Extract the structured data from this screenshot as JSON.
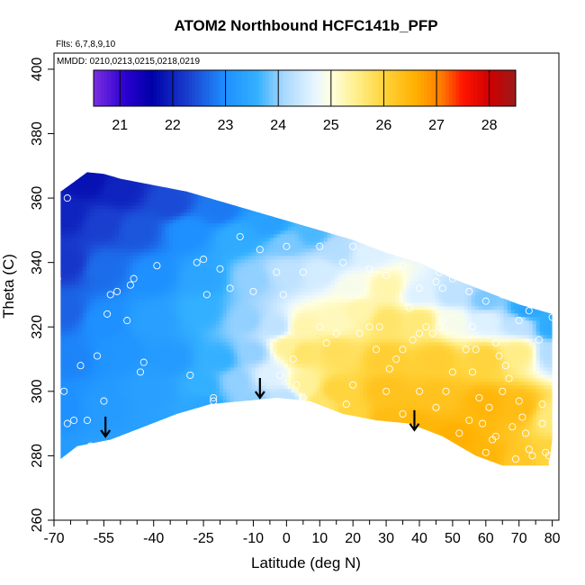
{
  "chart_data": {
    "type": "heatmap",
    "title": "ATOM2 Northbound HCFC141b_PFP",
    "flights_text": "Flts: 6,7,8,9,10",
    "dates_text": "MMDD: 0210,0213,0215,0218,0219",
    "xlabel": "Latitude (deg N)",
    "ylabel": "Theta (C)",
    "xlim": [
      -70,
      82
    ],
    "ylim": [
      260,
      405
    ],
    "x_ticks": [
      -70,
      -55,
      -40,
      -25,
      -10,
      0,
      10,
      20,
      30,
      40,
      50,
      60,
      70,
      80
    ],
    "x_tick_labels": [
      "-70",
      "-55",
      "-40",
      "-25",
      "-10",
      "0",
      "10",
      "20",
      "30",
      "40",
      "50",
      "60",
      "70",
      "80"
    ],
    "x_minor_ticks": [
      -65,
      -60,
      -50,
      -45,
      -35,
      -30,
      -20,
      -15,
      -5,
      5,
      15,
      25,
      35,
      45,
      55,
      65,
      75
    ],
    "y_ticks": [
      260,
      280,
      300,
      320,
      340,
      360,
      380,
      400
    ],
    "y_tick_labels": [
      "260",
      "280",
      "300",
      "320",
      "340",
      "360",
      "380",
      "400"
    ],
    "colorbar": {
      "min": 20.5,
      "max": 28.5,
      "ticks": [
        21,
        22,
        23,
        24,
        25,
        26,
        27,
        28
      ],
      "tick_labels": [
        "21",
        "22",
        "23",
        "24",
        "25",
        "26",
        "27",
        "28"
      ],
      "stops": [
        [
          20.5,
          "#7b2fe0"
        ],
        [
          21.1,
          "#2a00d0"
        ],
        [
          21.6,
          "#0000a8"
        ],
        [
          22.3,
          "#1a3fcf"
        ],
        [
          23.0,
          "#1e90ff"
        ],
        [
          23.6,
          "#33b0ff"
        ],
        [
          24.1,
          "#a9d8ff"
        ],
        [
          24.7,
          "#e8f6ff"
        ],
        [
          25.0,
          "#ffffe0"
        ],
        [
          25.5,
          "#ffee88"
        ],
        [
          26.0,
          "#ffd43c"
        ],
        [
          26.6,
          "#ffb000"
        ],
        [
          27.1,
          "#ff7a00"
        ],
        [
          27.5,
          "#ff1500"
        ],
        [
          28.0,
          "#d00000"
        ],
        [
          28.5,
          "#9b1a1a"
        ]
      ]
    },
    "boundary": [
      [
        -68,
        279
      ],
      [
        -63,
        283
      ],
      [
        -53,
        285
      ],
      [
        -43,
        289
      ],
      [
        -33,
        293
      ],
      [
        -23,
        296
      ],
      [
        -13,
        297
      ],
      [
        -3,
        298
      ],
      [
        7,
        297
      ],
      [
        17,
        293
      ],
      [
        27,
        291
      ],
      [
        37,
        290
      ],
      [
        47,
        286
      ],
      [
        57,
        280
      ],
      [
        65,
        277
      ],
      [
        79,
        277
      ],
      [
        80,
        285
      ],
      [
        80,
        300
      ],
      [
        80,
        316
      ],
      [
        80,
        324
      ],
      [
        70,
        327
      ],
      [
        60,
        331
      ],
      [
        50,
        335
      ],
      [
        40,
        340
      ],
      [
        30,
        343
      ],
      [
        20,
        347
      ],
      [
        10,
        350
      ],
      [
        0,
        353
      ],
      [
        -10,
        356
      ],
      [
        -20,
        359
      ],
      [
        -30,
        362
      ],
      [
        -40,
        364
      ],
      [
        -50,
        366
      ],
      [
        -55,
        367.5
      ],
      [
        -60,
        368
      ],
      [
        -64,
        365
      ],
      [
        -68,
        362
      ]
    ],
    "field_points": [
      [
        -68,
        278,
        23.2
      ],
      [
        -55,
        280,
        23.3
      ],
      [
        -40,
        286,
        23.3
      ],
      [
        -25,
        295,
        23.4
      ],
      [
        -10,
        297,
        24.0
      ],
      [
        0,
        298,
        24.3
      ],
      [
        10,
        296,
        25.7
      ],
      [
        20,
        292,
        26.0
      ],
      [
        30,
        291,
        26.4
      ],
      [
        40,
        289,
        26.5
      ],
      [
        50,
        285,
        26.6
      ],
      [
        60,
        279,
        26.5
      ],
      [
        70,
        277,
        26.2
      ],
      [
        80,
        279,
        26.0
      ],
      [
        -68,
        295,
        23.0
      ],
      [
        -55,
        295,
        23.2
      ],
      [
        -40,
        300,
        23.3
      ],
      [
        -25,
        302,
        23.6
      ],
      [
        -15,
        303,
        24.0
      ],
      [
        -5,
        305,
        24.6
      ],
      [
        5,
        302,
        25.4
      ],
      [
        15,
        300,
        26.0
      ],
      [
        30,
        300,
        26.3
      ],
      [
        45,
        298,
        26.3
      ],
      [
        60,
        296,
        26.5
      ],
      [
        70,
        295,
        26.4
      ],
      [
        80,
        292,
        25.6
      ],
      [
        -65,
        310,
        22.9
      ],
      [
        -50,
        312,
        23.1
      ],
      [
        -35,
        310,
        23.2
      ],
      [
        -20,
        310,
        23.6
      ],
      [
        -10,
        312,
        24.0
      ],
      [
        0,
        314,
        25.4
      ],
      [
        5,
        312,
        25.7
      ],
      [
        15,
        312,
        25.8
      ],
      [
        30,
        310,
        26.1
      ],
      [
        45,
        310,
        26.1
      ],
      [
        60,
        310,
        26.0
      ],
      [
        70,
        312,
        25.5
      ],
      [
        80,
        312,
        24.2
      ],
      [
        -67,
        325,
        22.6
      ],
      [
        -55,
        322,
        23.0
      ],
      [
        -40,
        322,
        23.3
      ],
      [
        -25,
        325,
        23.6
      ],
      [
        -12,
        322,
        24.0
      ],
      [
        -3,
        320,
        24.3
      ],
      [
        5,
        320,
        25.3
      ],
      [
        15,
        322,
        25.2
      ],
      [
        22,
        325,
        25.3
      ],
      [
        30,
        322,
        25.7
      ],
      [
        40,
        322,
        25.6
      ],
      [
        50,
        322,
        24.9
      ],
      [
        60,
        322,
        24.6
      ],
      [
        70,
        321,
        24.3
      ],
      [
        80,
        320,
        23.5
      ],
      [
        -66,
        340,
        22.2
      ],
      [
        -55,
        338,
        22.7
      ],
      [
        -40,
        336,
        23.0
      ],
      [
        -25,
        335,
        23.4
      ],
      [
        -10,
        335,
        24.0
      ],
      [
        0,
        337,
        24.3
      ],
      [
        10,
        337,
        24.5
      ],
      [
        20,
        332,
        24.9
      ],
      [
        30,
        332,
        25.3
      ],
      [
        40,
        330,
        24.6
      ],
      [
        50,
        330,
        24.3
      ],
      [
        60,
        328,
        23.9
      ],
      [
        72,
        325,
        23.4
      ],
      [
        -66,
        355,
        22.0
      ],
      [
        -55,
        352,
        22.3
      ],
      [
        -45,
        350,
        22.5
      ],
      [
        -30,
        350,
        23.0
      ],
      [
        -15,
        348,
        23.5
      ],
      [
        0,
        346,
        23.9
      ],
      [
        15,
        344,
        24.2
      ],
      [
        25,
        343,
        24.6
      ],
      [
        -60,
        365,
        21.8
      ],
      [
        -50,
        362,
        22.0
      ],
      [
        -35,
        358,
        22.4
      ],
      [
        -20,
        356,
        22.8
      ],
      [
        -5,
        352,
        23.3
      ],
      [
        8,
        349,
        23.7
      ]
    ],
    "samples": [
      [
        -69,
        335
      ],
      [
        -66,
        360
      ],
      [
        -67,
        300
      ],
      [
        -67,
        278
      ],
      [
        -66,
        290
      ],
      [
        -64,
        291
      ],
      [
        -62,
        308
      ],
      [
        -60,
        291
      ],
      [
        -59,
        283
      ],
      [
        -57,
        311
      ],
      [
        -55,
        297
      ],
      [
        -54,
        324
      ],
      [
        -53,
        330
      ],
      [
        -51,
        331
      ],
      [
        -48,
        322
      ],
      [
        -47,
        333
      ],
      [
        -46,
        335
      ],
      [
        -44,
        306
      ],
      [
        -43,
        309
      ],
      [
        -43,
        286
      ],
      [
        -39,
        339
      ],
      [
        -29,
        305
      ],
      [
        -27,
        340
      ],
      [
        -25,
        341
      ],
      [
        -24,
        330
      ],
      [
        -22,
        298
      ],
      [
        -22,
        297
      ],
      [
        -20,
        338
      ],
      [
        -17,
        332
      ],
      [
        -14,
        348
      ],
      [
        -10,
        331
      ],
      [
        -8,
        344
      ],
      [
        -3,
        337
      ],
      [
        -1,
        330
      ],
      [
        0,
        345
      ],
      [
        5,
        337
      ],
      [
        10,
        345
      ],
      [
        15,
        350
      ],
      [
        17,
        340
      ],
      [
        20,
        345
      ],
      [
        25,
        338
      ],
      [
        30,
        336
      ],
      [
        35,
        339
      ],
      [
        40,
        332
      ],
      [
        45,
        334
      ],
      [
        46,
        337
      ],
      [
        47,
        332
      ],
      [
        50,
        335
      ],
      [
        55,
        331
      ],
      [
        60,
        328
      ],
      [
        65,
        330
      ],
      [
        70,
        322
      ],
      [
        68,
        333
      ],
      [
        73,
        325
      ],
      [
        80,
        323
      ],
      [
        -2,
        305
      ],
      [
        2,
        310
      ],
      [
        3,
        302
      ],
      [
        5,
        298
      ],
      [
        10,
        320
      ],
      [
        12,
        315
      ],
      [
        15,
        318
      ],
      [
        18,
        296
      ],
      [
        20,
        302
      ],
      [
        22,
        318
      ],
      [
        25,
        320
      ],
      [
        27,
        313
      ],
      [
        28,
        320
      ],
      [
        30,
        300
      ],
      [
        31,
        307
      ],
      [
        33,
        310
      ],
      [
        35,
        313
      ],
      [
        37,
        326
      ],
      [
        38,
        316
      ],
      [
        40,
        300
      ],
      [
        42,
        320
      ],
      [
        45,
        295
      ],
      [
        46,
        320
      ],
      [
        47,
        322
      ],
      [
        48,
        300
      ],
      [
        50,
        306
      ],
      [
        52,
        287
      ],
      [
        54,
        313
      ],
      [
        56,
        320
      ],
      [
        57,
        313
      ],
      [
        58,
        298
      ],
      [
        59,
        290
      ],
      [
        60,
        281
      ],
      [
        61,
        295
      ],
      [
        63,
        315
      ],
      [
        64,
        311
      ],
      [
        65,
        300
      ],
      [
        66,
        308
      ],
      [
        67,
        304
      ],
      [
        68,
        289
      ],
      [
        69,
        279
      ],
      [
        70,
        297
      ],
      [
        71,
        292
      ],
      [
        72,
        287
      ],
      [
        73,
        282
      ],
      [
        74,
        280
      ],
      [
        76,
        316
      ],
      [
        77,
        296
      ],
      [
        77,
        290
      ],
      [
        78,
        281
      ],
      [
        79,
        280
      ],
      [
        80,
        278
      ],
      [
        55,
        291
      ],
      [
        62,
        285
      ],
      [
        63,
        286
      ],
      [
        35,
        293
      ],
      [
        25,
        290
      ],
      [
        40,
        318
      ],
      [
        44,
        318
      ],
      [
        56,
        306
      ]
    ],
    "arrows": [
      {
        "lat": -54.5,
        "theta": 286
      },
      {
        "lat": -8,
        "theta": 298
      },
      {
        "lat": 38.5,
        "theta": 288
      }
    ]
  }
}
